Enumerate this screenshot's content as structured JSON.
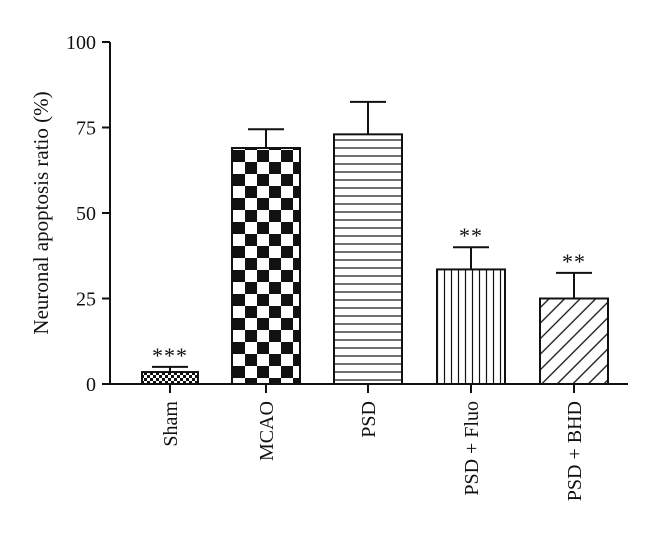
{
  "chart_data": {
    "type": "bar",
    "title": "",
    "xlabel": "",
    "ylabel": "Neuronal apoptosis ratio (%)",
    "ylim": [
      0,
      100
    ],
    "yticks": [
      0,
      25,
      50,
      75,
      100
    ],
    "grid": false,
    "categories": [
      "Sham",
      "MCAO",
      "PSD",
      "PSD + Fluo",
      "PSD + BHD"
    ],
    "values": [
      3.5,
      69,
      73,
      33.5,
      25
    ],
    "errors": [
      1.5,
      5.5,
      9.5,
      6.5,
      7.5
    ],
    "significance": [
      "***",
      "",
      "",
      "**",
      "**"
    ],
    "patterns": [
      "small-checker",
      "large-checker",
      "horizontal-lines",
      "vertical-lines",
      "diagonal-lines"
    ]
  }
}
